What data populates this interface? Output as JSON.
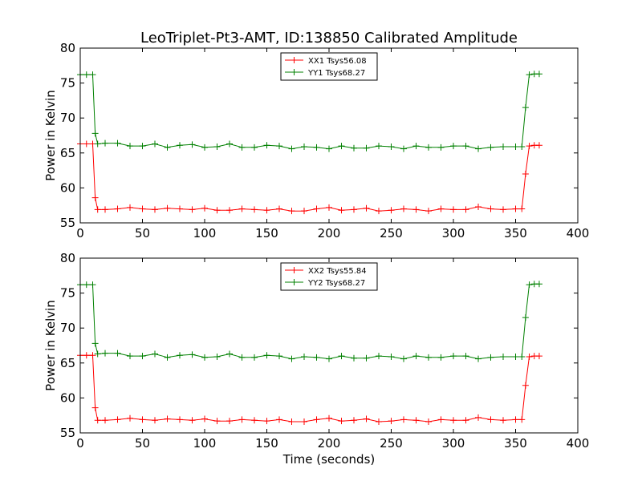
{
  "chart_data": {
    "title": "LeoTriplet-Pt3-AMT, ID:138850 Calibrated Amplitude",
    "xlabel": "Time (seconds)",
    "panels": [
      {
        "type": "line",
        "ylabel": "Power in Kelvin",
        "xlim": [
          0,
          400
        ],
        "ylim": [
          55,
          80
        ],
        "xticks": [
          "0",
          "50",
          "100",
          "150",
          "200",
          "250",
          "300",
          "350",
          "400"
        ],
        "yticks": [
          "55",
          "60",
          "65",
          "70",
          "75",
          "80"
        ],
        "legend_position": "top-center",
        "series": [
          {
            "name": "XX1 Tsys56.08",
            "color": "#ff0000",
            "x": [
              0,
              5,
              10,
              12,
              14,
              20,
              30,
              40,
              50,
              60,
              70,
              80,
              90,
              100,
              110,
              120,
              130,
              140,
              150,
              160,
              170,
              180,
              190,
              200,
              210,
              220,
              230,
              240,
              250,
              260,
              270,
              280,
              290,
              300,
              310,
              320,
              330,
              340,
              350,
              355,
              358,
              361,
              365,
              369
            ],
            "y": [
              66.3,
              66.3,
              66.3,
              58.6,
              56.9,
              56.9,
              57.0,
              57.2,
              57.0,
              56.9,
              57.1,
              57.0,
              56.9,
              57.1,
              56.8,
              56.8,
              57.0,
              56.9,
              56.8,
              57.0,
              56.7,
              56.7,
              57.0,
              57.2,
              56.8,
              56.9,
              57.1,
              56.7,
              56.8,
              57.0,
              56.9,
              56.7,
              57.0,
              56.9,
              56.9,
              57.3,
              57.0,
              56.9,
              57.0,
              57.0,
              62.0,
              66.0,
              66.1,
              66.1
            ]
          },
          {
            "name": "YY1 Tsys68.27",
            "color": "#008000",
            "x": [
              0,
              5,
              10,
              12,
              14,
              20,
              30,
              40,
              50,
              60,
              70,
              80,
              90,
              100,
              110,
              120,
              130,
              140,
              150,
              160,
              170,
              180,
              190,
              200,
              210,
              220,
              230,
              240,
              250,
              260,
              270,
              280,
              290,
              300,
              310,
              320,
              330,
              340,
              350,
              355,
              358,
              361,
              365,
              369
            ],
            "y": [
              76.2,
              76.2,
              76.2,
              67.8,
              66.3,
              66.4,
              66.4,
              66.0,
              66.0,
              66.3,
              65.8,
              66.1,
              66.2,
              65.8,
              65.9,
              66.3,
              65.8,
              65.8,
              66.1,
              66.0,
              65.6,
              65.9,
              65.8,
              65.6,
              66.0,
              65.7,
              65.7,
              66.0,
              65.9,
              65.6,
              66.0,
              65.8,
              65.8,
              66.0,
              66.0,
              65.6,
              65.8,
              65.9,
              65.9,
              65.9,
              71.5,
              76.2,
              76.3,
              76.3
            ]
          }
        ]
      },
      {
        "type": "line",
        "ylabel": "Power in Kelvin",
        "xlim": [
          0,
          400
        ],
        "ylim": [
          55,
          80
        ],
        "xticks": [
          "0",
          "50",
          "100",
          "150",
          "200",
          "250",
          "300",
          "350",
          "400"
        ],
        "yticks": [
          "55",
          "60",
          "65",
          "70",
          "75",
          "80"
        ],
        "legend_position": "top-center",
        "series": [
          {
            "name": "XX2 Tsys55.84",
            "color": "#ff0000",
            "x": [
              0,
              5,
              10,
              12,
              14,
              20,
              30,
              40,
              50,
              60,
              70,
              80,
              90,
              100,
              110,
              120,
              130,
              140,
              150,
              160,
              170,
              180,
              190,
              200,
              210,
              220,
              230,
              240,
              250,
              260,
              270,
              280,
              290,
              300,
              310,
              320,
              330,
              340,
              350,
              355,
              358,
              361,
              365,
              369
            ],
            "y": [
              66.1,
              66.1,
              66.1,
              58.6,
              56.8,
              56.8,
              56.9,
              57.1,
              56.9,
              56.8,
              57.0,
              56.9,
              56.8,
              57.0,
              56.7,
              56.7,
              56.9,
              56.8,
              56.7,
              56.9,
              56.6,
              56.6,
              56.9,
              57.1,
              56.7,
              56.8,
              57.0,
              56.6,
              56.7,
              56.9,
              56.8,
              56.6,
              56.9,
              56.8,
              56.8,
              57.2,
              56.9,
              56.8,
              56.9,
              56.9,
              61.8,
              65.9,
              66.0,
              66.0
            ]
          },
          {
            "name": "YY2 Tsys68.27",
            "color": "#008000",
            "x": [
              0,
              5,
              10,
              12,
              14,
              20,
              30,
              40,
              50,
              60,
              70,
              80,
              90,
              100,
              110,
              120,
              130,
              140,
              150,
              160,
              170,
              180,
              190,
              200,
              210,
              220,
              230,
              240,
              250,
              260,
              270,
              280,
              290,
              300,
              310,
              320,
              330,
              340,
              350,
              355,
              358,
              361,
              365,
              369
            ],
            "y": [
              76.2,
              76.2,
              76.2,
              67.8,
              66.3,
              66.4,
              66.4,
              66.0,
              66.0,
              66.3,
              65.8,
              66.1,
              66.2,
              65.8,
              65.9,
              66.3,
              65.8,
              65.8,
              66.1,
              66.0,
              65.6,
              65.9,
              65.8,
              65.6,
              66.0,
              65.7,
              65.7,
              66.0,
              65.9,
              65.6,
              66.0,
              65.8,
              65.8,
              66.0,
              66.0,
              65.6,
              65.8,
              65.9,
              65.9,
              65.9,
              71.5,
              76.2,
              76.3,
              76.3
            ]
          }
        ]
      }
    ]
  }
}
